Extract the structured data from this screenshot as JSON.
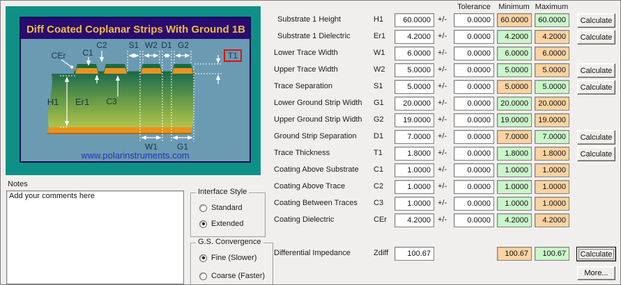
{
  "diagram": {
    "title": "Diff Coated Coplanar Strips With Ground  1B",
    "website": "www.polarinstruments.com",
    "labels": {
      "cer": "CEr",
      "c1": "C1",
      "c2": "C2",
      "c3": "C3",
      "s1": "S1",
      "w2": "W2",
      "d1": "D1",
      "g2": "G2",
      "t1": "T1",
      "h1": "H1",
      "er1": "Er1",
      "w1": "W1",
      "g1": "G1"
    },
    "colors": {
      "frame": "#0F9086",
      "panel": "#6B9BB2",
      "title_bar": "#2A0B72",
      "title_text": "#EFBF3A",
      "substrate_top": "#1F6C4D",
      "substrate_bottom": "#C0CB4E",
      "copper": "#E8941F",
      "coating": "#1E6B3C",
      "highlight_box": "#DD1111",
      "website_text": "#2233C0"
    }
  },
  "notes": {
    "label": "Notes",
    "value": "Add your comments here"
  },
  "interface_style": {
    "title": "Interface Style",
    "options": [
      {
        "label": "Standard",
        "selected": false
      },
      {
        "label": "Extended",
        "selected": true
      }
    ]
  },
  "gs_convergence": {
    "title": "G.S. Convergence",
    "options": [
      {
        "label": "Fine (Slower)",
        "selected": true
      },
      {
        "label": "Coarse (Faster)",
        "selected": false
      }
    ]
  },
  "parameters": {
    "headers": {
      "tolerance": "Tolerance",
      "minimum": "Minimum",
      "maximum": "Maximum"
    },
    "plus_minus": "+/-",
    "calculate_label": "Calculate",
    "more_label": "More...",
    "min_max_colors": {
      "green": "#CBF6CA",
      "orange": "#FCD3A2"
    },
    "rows": [
      {
        "label": "Substrate 1 Height",
        "code": "H1",
        "value": "60.0000",
        "tolerance": "0.0000",
        "min": "60.0000",
        "max": "60.0000",
        "min_color": "orange",
        "max_color": "green",
        "calculate": true
      },
      {
        "label": "Substrate 1 Dielectric",
        "code": "Er1",
        "value": "4.2000",
        "tolerance": "0.0000",
        "min": "4.2000",
        "max": "4.2000",
        "min_color": "green",
        "max_color": "orange",
        "calculate": true
      },
      {
        "label": "Lower Trace Width",
        "code": "W1",
        "value": "6.0000",
        "tolerance": "0.0000",
        "min": "6.0000",
        "max": "6.0000",
        "min_color": "green",
        "max_color": "orange",
        "calculate": false
      },
      {
        "label": "Upper Trace Width",
        "code": "W2",
        "value": "5.0000",
        "tolerance": "0.0000",
        "min": "5.0000",
        "max": "5.0000",
        "min_color": "green",
        "max_color": "orange",
        "calculate": true
      },
      {
        "label": "Trace Separation",
        "code": "S1",
        "value": "5.0000",
        "tolerance": "0.0000",
        "min": "5.0000",
        "max": "5.0000",
        "min_color": "orange",
        "max_color": "green",
        "calculate": true
      },
      {
        "label": "Lower Ground Strip Width",
        "code": "G1",
        "value": "20.0000",
        "tolerance": "0.0000",
        "min": "20.0000",
        "max": "20.0000",
        "min_color": "green",
        "max_color": "orange",
        "calculate": false
      },
      {
        "label": "Upper Ground Strip Width",
        "code": "G2",
        "value": "19.0000",
        "tolerance": "0.0000",
        "min": "19.0000",
        "max": "19.0000",
        "min_color": "green",
        "max_color": "orange",
        "calculate": false
      },
      {
        "label": "Ground Strip Separation",
        "code": "D1",
        "value": "7.0000",
        "tolerance": "0.0000",
        "min": "7.0000",
        "max": "7.0000",
        "min_color": "orange",
        "max_color": "green",
        "calculate": true
      },
      {
        "label": "Trace Thickness",
        "code": "T1",
        "value": "1.8000",
        "tolerance": "0.0000",
        "min": "1.8000",
        "max": "1.8000",
        "min_color": "green",
        "max_color": "orange",
        "calculate": true
      },
      {
        "label": "Coating Above Substrate",
        "code": "C1",
        "value": "1.0000",
        "tolerance": "0.0000",
        "min": "1.0000",
        "max": "1.0000",
        "min_color": "green",
        "max_color": "orange",
        "calculate": false
      },
      {
        "label": "Coating Above Trace",
        "code": "C2",
        "value": "1.0000",
        "tolerance": "0.0000",
        "min": "1.0000",
        "max": "1.0000",
        "min_color": "green",
        "max_color": "orange",
        "calculate": false
      },
      {
        "label": "Coating Between Traces",
        "code": "C3",
        "value": "1.0000",
        "tolerance": "0.0000",
        "min": "1.0000",
        "max": "1.0000",
        "min_color": "green",
        "max_color": "orange",
        "calculate": false
      },
      {
        "label": "Coating Dielectric",
        "code": "CEr",
        "value": "4.2000",
        "tolerance": "0.0000",
        "min": "4.2000",
        "max": "4.2000",
        "min_color": "green",
        "max_color": "orange",
        "calculate": false
      }
    ],
    "impedance": {
      "label": "Differential Impedance",
      "code": "Zdiff",
      "value": "100.67",
      "min": "100.67",
      "max": "100.67",
      "min_color": "orange",
      "max_color": "green",
      "calculate": true,
      "focused": true
    }
  }
}
